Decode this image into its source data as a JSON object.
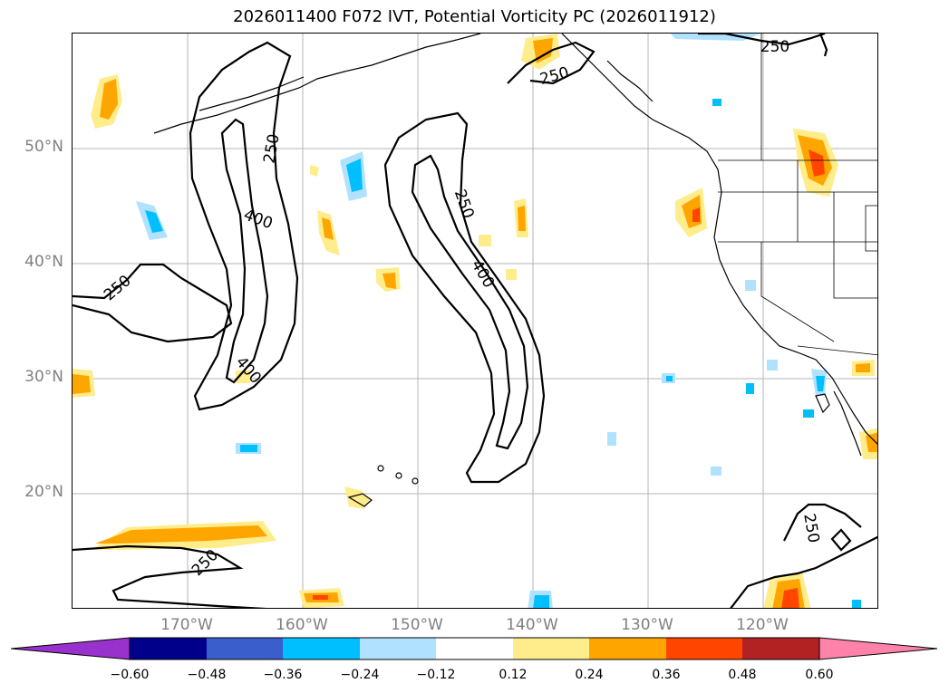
{
  "title": "2026011400 F072 IVT, Potential Vorticity PC (2026011912)",
  "map": {
    "latitude_labels": [
      "50°N",
      "40°N",
      "30°N",
      "20°N"
    ],
    "longitude_labels": [
      "170°W",
      "160°W",
      "150°W",
      "140°W",
      "130°W",
      "120°W"
    ],
    "contour_labels": [
      {
        "text": "250",
        "name": "contour-label-250-north-coast"
      },
      {
        "text": "250",
        "name": "contour-label-250-gulf-alaska"
      },
      {
        "text": "250",
        "name": "contour-label-250-west-arc"
      },
      {
        "text": "400",
        "name": "contour-label-400-west-arc-north"
      },
      {
        "text": "400",
        "name": "contour-label-400-west-arc-south"
      },
      {
        "text": "250",
        "name": "contour-label-250-west-blob"
      },
      {
        "text": "250",
        "name": "contour-label-250-central-arc"
      },
      {
        "text": "400",
        "name": "contour-label-400-central-arc"
      },
      {
        "text": "250",
        "name": "contour-label-250-southwest"
      },
      {
        "text": "250",
        "name": "contour-label-250-southeast"
      }
    ]
  },
  "colorbar": {
    "tick_labels": [
      "−0.60",
      "−0.48",
      "−0.36",
      "−0.24",
      "−0.12",
      "0.12",
      "0.24",
      "0.36",
      "0.48",
      "0.60"
    ],
    "colors": [
      "#9932cc",
      "#00008b",
      "#3a5fcd",
      "#00bfff",
      "#b0e2ff",
      "#ffffff",
      "#ffec8b",
      "#ffa500",
      "#ff4500",
      "#b22222",
      "#ff82ab"
    ]
  }
}
